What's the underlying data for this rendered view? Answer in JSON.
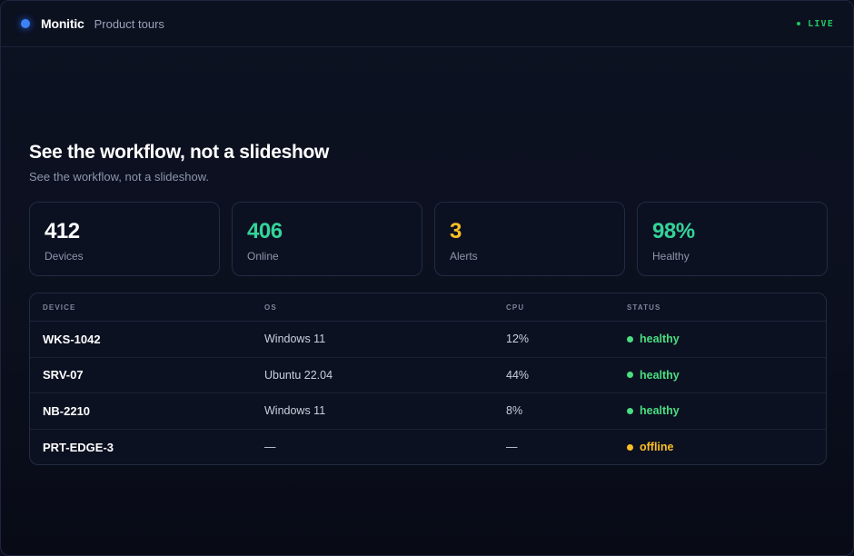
{
  "header": {
    "brand": "Monitic",
    "breadcrumb": "Product tours",
    "live_label": "LIVE"
  },
  "main": {
    "title": "See the workflow, not a slideshow",
    "subtitle": "See the workflow, not a slideshow."
  },
  "stats": [
    {
      "value": "412",
      "label": "Devices",
      "color": "#ffffff"
    },
    {
      "value": "406",
      "label": "Online",
      "color": "#34d399"
    },
    {
      "value": "3",
      "label": "Alerts",
      "color": "#fbbf24"
    },
    {
      "value": "98%",
      "label": "Healthy",
      "color": "#34d399"
    }
  ],
  "table": {
    "columns": [
      "DEVICE",
      "OS",
      "CPU",
      "STATUS"
    ],
    "rows": [
      {
        "device": "WKS-1042",
        "os": "Windows 11",
        "cpu": "12%",
        "status": "healthy",
        "status_color": "#4ade80"
      },
      {
        "device": "SRV-07",
        "os": "Ubuntu 22.04",
        "cpu": "44%",
        "status": "healthy",
        "status_color": "#4ade80"
      },
      {
        "device": "NB-2210",
        "os": "Windows 11",
        "cpu": "8%",
        "status": "healthy",
        "status_color": "#4ade80"
      },
      {
        "device": "PRT-EDGE-3",
        "os": "—",
        "cpu": "—",
        "status": "offline",
        "status_color": "#fbbf24"
      }
    ]
  },
  "colors": {
    "accent": "#3b82f6",
    "live": "#22c55e",
    "healthy": "#4ade80",
    "warning": "#fbbf24"
  }
}
